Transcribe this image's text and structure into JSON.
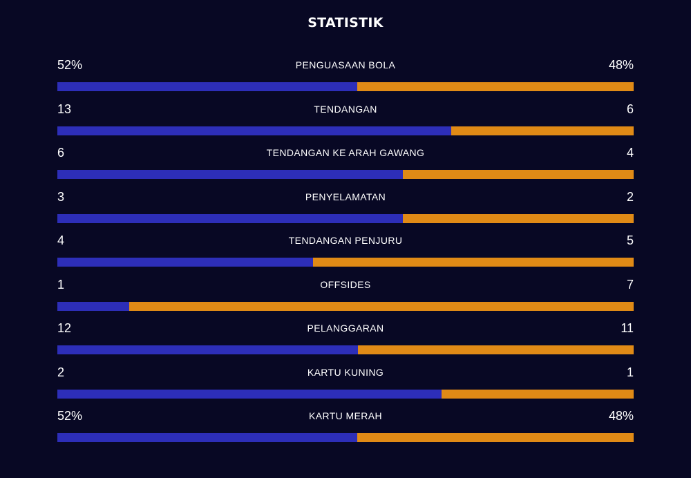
{
  "title": "STATISTIK",
  "colors": {
    "background": "#080824",
    "home": "#2d2eb8",
    "away": "#e08a16"
  },
  "stats": [
    {
      "label": "PENGUASAAN BOLA",
      "left": "52%",
      "right": "48%",
      "home_share": 0.52
    },
    {
      "label": "TENDANGAN",
      "left": "13",
      "right": "6",
      "home_share": 0.684
    },
    {
      "label": "TENDANGAN KE ARAH GAWANG",
      "left": "6",
      "right": "4",
      "home_share": 0.6
    },
    {
      "label": "PENYELAMATAN",
      "left": "3",
      "right": "2",
      "home_share": 0.6
    },
    {
      "label": "TENDANGAN PENJURU",
      "left": "4",
      "right": "5",
      "home_share": 0.444
    },
    {
      "label": "OFFSIDES",
      "left": "1",
      "right": "7",
      "home_share": 0.125
    },
    {
      "label": "PELANGGARAN",
      "left": "12",
      "right": "11",
      "home_share": 0.522
    },
    {
      "label": "KARTU KUNING",
      "left": "2",
      "right": "1",
      "home_share": 0.667
    },
    {
      "label": "KARTU MERAH",
      "left": "52%",
      "right": "48%",
      "home_share": 0.52
    }
  ]
}
